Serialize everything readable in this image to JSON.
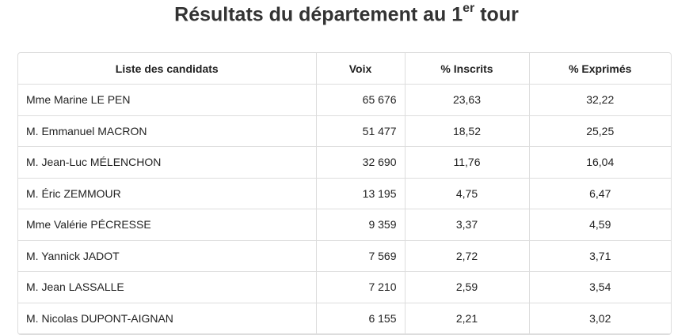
{
  "title": {
    "before": "Résultats du département au 1",
    "sup": "er",
    "after": "tour"
  },
  "table": {
    "header": [
      "Liste des candidats",
      "Voix",
      "% Inscrits",
      "% Exprimés"
    ],
    "rows": [
      [
        "Mme Marine LE PEN",
        "65 676",
        "23,63",
        "32,22"
      ],
      [
        "M. Emmanuel MACRON",
        "51 477",
        "18,52",
        "25,25"
      ],
      [
        "M. Jean-Luc MÉLENCHON",
        "32 690",
        "11,76",
        "16,04"
      ],
      [
        "M. Éric ZEMMOUR",
        "13 195",
        "4,75",
        "6,47"
      ],
      [
        "Mme Valérie PÉCRESSE",
        "9 359",
        "3,37",
        "4,59"
      ],
      [
        "M. Yannick JADOT",
        "7 569",
        "2,72",
        "3,71"
      ],
      [
        "M. Jean LASSALLE",
        "7 210",
        "2,59",
        "3,54"
      ],
      [
        "M. Nicolas DUPONT-AIGNAN",
        "6 155",
        "2,21",
        "3,02"
      ]
    ]
  }
}
